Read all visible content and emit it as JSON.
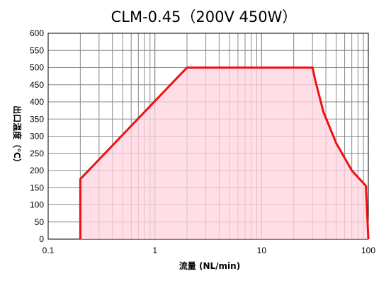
{
  "chart_data": {
    "type": "area",
    "title": "CLM-0.45（200V 450W）",
    "xlabel": "流量 (NL/min)",
    "ylabel": "出口温度（℃）",
    "x_scale": "log",
    "xlim": [
      0.1,
      100
    ],
    "ylim": [
      0,
      600
    ],
    "x_ticks": [
      "0.1",
      "1",
      "10",
      "100"
    ],
    "y_ticks": [
      "0",
      "50",
      "100",
      "150",
      "200",
      "250",
      "300",
      "350",
      "400",
      "450",
      "500",
      "550",
      "600"
    ],
    "grid": true,
    "series": [
      {
        "x": [
          0.2,
          0.2,
          2,
          30,
          32,
          38,
          50,
          70,
          95,
          100
        ],
        "values": [
          0,
          175,
          500,
          500,
          460,
          370,
          280,
          200,
          155,
          0
        ]
      }
    ],
    "colors": {
      "line": "#ee1111",
      "fill": "#ffd3df",
      "grid": "#888888"
    }
  }
}
